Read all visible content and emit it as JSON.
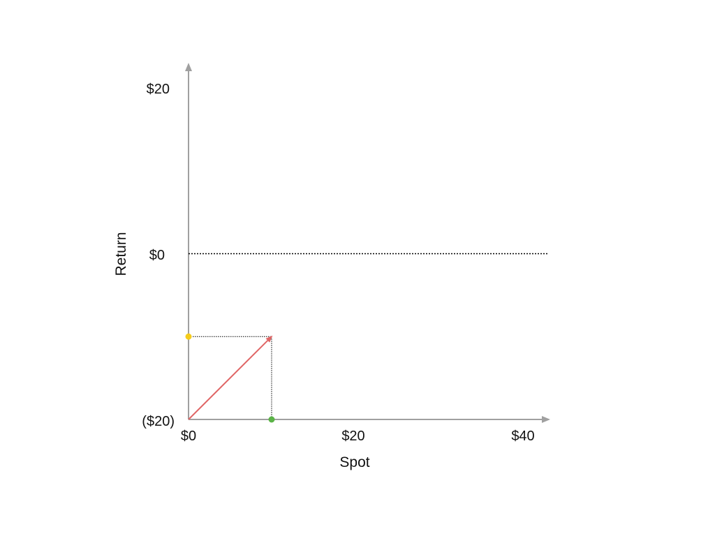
{
  "colors": {
    "axis": "#a0a0a0",
    "zero_line": "#000000",
    "guide_lines": "#000000",
    "payoff_arrow": "#e06666",
    "spot_point": "#5bb347",
    "return_point": "#f5cc1b",
    "text": "#111111"
  },
  "chart_data": {
    "type": "line",
    "title": "",
    "xlabel": "Spot",
    "ylabel": "Return",
    "xlim": [
      0,
      42
    ],
    "ylim": [
      -20,
      20
    ],
    "grid": false,
    "x_ticks": [
      {
        "value": 0,
        "label": "$0"
      },
      {
        "value": 20,
        "label": "$20"
      },
      {
        "value": 40,
        "label": "$40"
      }
    ],
    "y_ticks": [
      {
        "value": -20,
        "label": "($20)"
      },
      {
        "value": 0,
        "label": "$0"
      },
      {
        "value": 20,
        "label": "$20"
      }
    ],
    "zero_line": {
      "y": 0,
      "style": "dotted"
    },
    "series": [
      {
        "x": [
          0,
          10
        ],
        "y": [
          -20,
          -10
        ],
        "color": "#e06666",
        "marker": "arrow"
      }
    ],
    "guides": [
      {
        "from": [
          0,
          -10
        ],
        "to": [
          10,
          -10
        ],
        "style": "dotted"
      },
      {
        "from": [
          10,
          -10
        ],
        "to": [
          10,
          -20
        ],
        "style": "dotted"
      }
    ],
    "points": [
      {
        "x": 10,
        "y": -20,
        "color": "#5bb347",
        "role": "spot"
      },
      {
        "x": 0,
        "y": -10,
        "color": "#f5cc1b",
        "role": "return"
      }
    ]
  }
}
